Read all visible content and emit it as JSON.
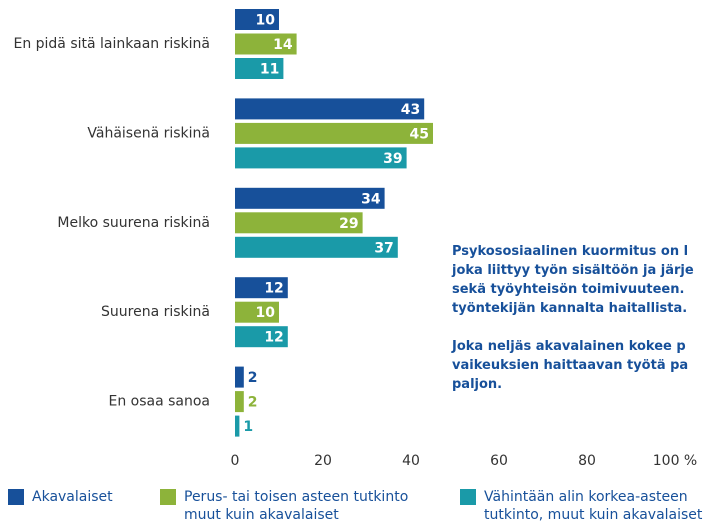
{
  "chart_data": {
    "type": "hbar",
    "categories": [
      "En pidä sitä lainkaan riskinä",
      "Vähäisenä riskinä",
      "Melko suurena riskinä",
      "Suurena riskinä",
      "En osaa sanoa"
    ],
    "series": [
      {
        "name": "Akavalaiset",
        "color": "#17509a",
        "values": [
          10,
          43,
          34,
          12,
          2
        ]
      },
      {
        "name": "Perus- tai toisen asteen tutkinto muut kuin akavalaiset",
        "color": "#8db33a",
        "values": [
          14,
          45,
          29,
          10,
          2
        ]
      },
      {
        "name": "Vähintään alin korkea-asteen tutkinto, muut kuin akavalaiset",
        "color": "#1a9aa8",
        "values": [
          11,
          39,
          37,
          12,
          1
        ]
      }
    ],
    "xlim": [
      0,
      100
    ],
    "xticks": [
      0,
      20,
      40,
      60,
      80,
      {
        "value": 100,
        "label": "100 %"
      }
    ],
    "annotation": [
      "Psykososiaalinen kuormitus on l",
      "joka liittyy työn sisältöön ja järje",
      "sekä työyhteisön toimivuuteen.",
      "työntekijän kannalta haitallista.",
      "",
      "Joka neljäs akavalainen kokee p",
      "vaikeuksien haittaavan työtä pa",
      "paljon."
    ]
  }
}
